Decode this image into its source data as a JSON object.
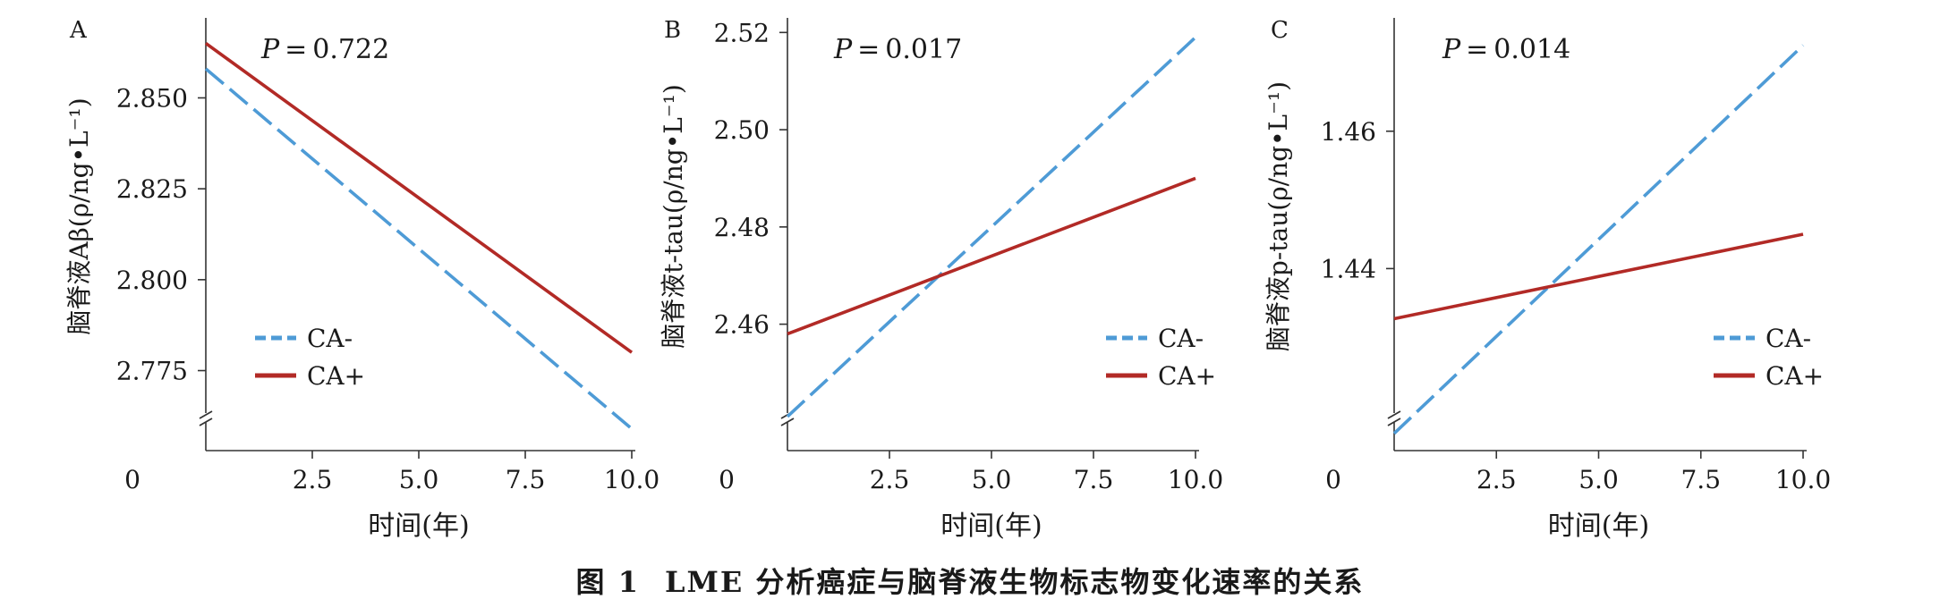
{
  "figure": {
    "caption_label": "图 1",
    "caption_text": "LME 分析癌症与脑脊液生物标志物变化速率的关系"
  },
  "colors": {
    "ca_minus": "#4e9bd6",
    "ca_plus": "#b22a26"
  },
  "chart_data": [
    {
      "panel": "A",
      "type": "line",
      "pvalue": "P=0.722",
      "xlabel": "时间(年)",
      "ylabel": "脑脊液Aβ(ρ/ng•L⁻¹)",
      "xlim": [
        0,
        10
      ],
      "ylim": [
        2.753,
        2.872
      ],
      "x_ticks": [
        "2.5",
        "5.0",
        "7.5",
        "10.0"
      ],
      "x_tick_values": [
        2.5,
        5.0,
        7.5,
        10.0
      ],
      "x_origin_label": "0",
      "y_ticks": [
        "2.775",
        "2.800",
        "2.825",
        "2.850"
      ],
      "y_tick_values": [
        2.775,
        2.8,
        2.825,
        2.85
      ],
      "axis_break": true,
      "legend_position": "bottom-left",
      "series": [
        {
          "name": "CA-",
          "x": [
            0,
            10
          ],
          "y": [
            2.858,
            2.759
          ],
          "style": "dashed"
        },
        {
          "name": "CA+",
          "x": [
            0,
            10
          ],
          "y": [
            2.865,
            2.78
          ],
          "style": "solid"
        }
      ]
    },
    {
      "panel": "B",
      "type": "line",
      "pvalue": "P=0.017",
      "xlabel": "时间(年)",
      "ylabel": "脑脊液t-tau(ρ/ng•L⁻¹)",
      "xlim": [
        0,
        10
      ],
      "ylim": [
        2.434,
        2.523
      ],
      "x_ticks": [
        "2.5",
        "5.0",
        "7.5",
        "10.0"
      ],
      "x_tick_values": [
        2.5,
        5.0,
        7.5,
        10.0
      ],
      "x_origin_label": "0",
      "y_ticks": [
        "2.46",
        "2.48",
        "2.50",
        "2.52"
      ],
      "y_tick_values": [
        2.46,
        2.48,
        2.5,
        2.52
      ],
      "axis_break": true,
      "legend_position": "bottom-right",
      "series": [
        {
          "name": "CA-",
          "x": [
            0,
            10
          ],
          "y": [
            2.441,
            2.519
          ],
          "style": "dashed"
        },
        {
          "name": "CA+",
          "x": [
            0,
            10
          ],
          "y": [
            2.458,
            2.49
          ],
          "style": "solid"
        }
      ]
    },
    {
      "panel": "C",
      "type": "line",
      "pvalue": "P=0.014",
      "xlabel": "时间(年)",
      "ylabel": "脑脊液p-tau(ρ/ng•L⁻¹)",
      "xlim": [
        0,
        10
      ],
      "ylim": [
        1.4135,
        1.4765
      ],
      "x_ticks": [
        "2.5",
        "5.0",
        "7.5",
        "10.0"
      ],
      "x_tick_values": [
        2.5,
        5.0,
        7.5,
        10.0
      ],
      "x_origin_label": "0",
      "y_ticks": [
        "1.44",
        "1.46"
      ],
      "y_tick_values": [
        1.44,
        1.46
      ],
      "axis_break": true,
      "legend_position": "bottom-right",
      "series": [
        {
          "name": "CA-",
          "x": [
            0,
            10
          ],
          "y": [
            1.416,
            1.4725
          ],
          "style": "dashed"
        },
        {
          "name": "CA+",
          "x": [
            0,
            10
          ],
          "y": [
            1.4327,
            1.445
          ],
          "style": "solid"
        }
      ]
    }
  ]
}
